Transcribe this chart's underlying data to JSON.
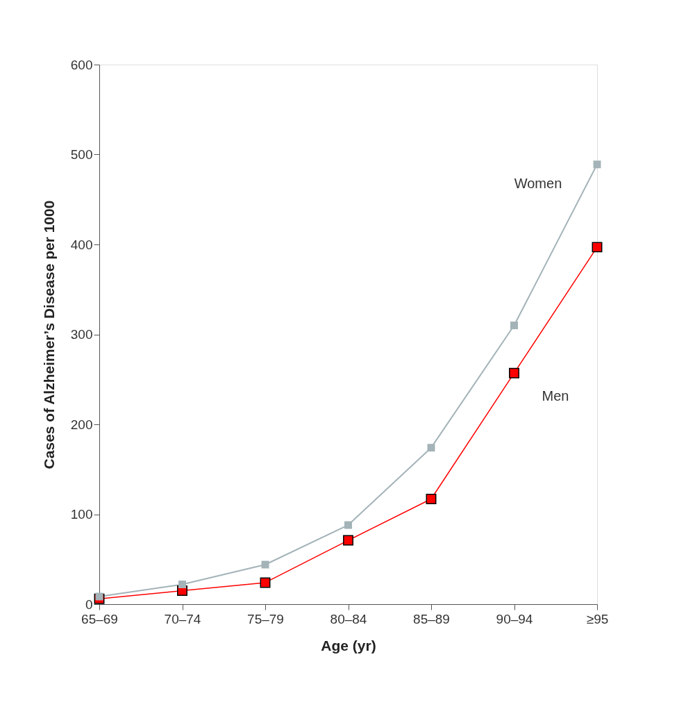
{
  "chart_data": {
    "type": "line",
    "xlabel": "Age (yr)",
    "ylabel": "Cases of Alzheimer’s Disease per 1000",
    "categories": [
      "65–69",
      "70–74",
      "75–79",
      "80–84",
      "85–89",
      "90–94",
      "≥95"
    ],
    "series": [
      {
        "name": "Women",
        "color": "#a3b3b8",
        "values": [
          8.5,
          22,
          44,
          88,
          174,
          310,
          489
        ]
      },
      {
        "name": "Men",
        "color": "#ff0000",
        "values": [
          6,
          15,
          24,
          71,
          117,
          257,
          397
        ]
      }
    ],
    "ylim": [
      0,
      600
    ],
    "yticks": [
      0,
      100,
      200,
      300,
      400,
      500,
      600
    ],
    "grid": false,
    "legend": false,
    "marker": "square",
    "line_style": "solid"
  }
}
